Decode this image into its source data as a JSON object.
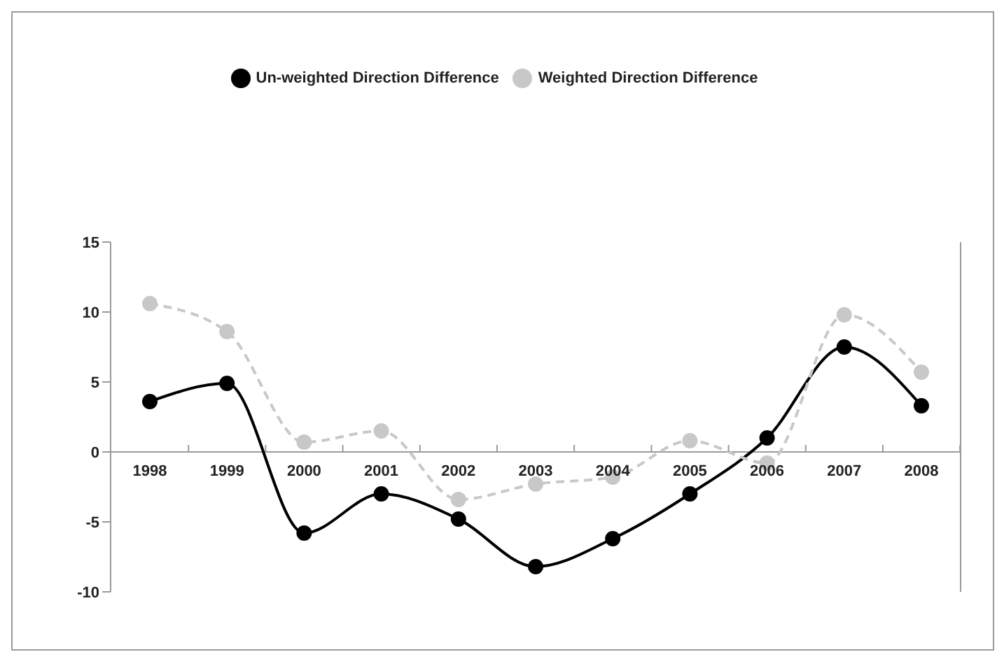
{
  "chart_data": {
    "type": "line",
    "categories": [
      "1998",
      "1999",
      "2000",
      "2001",
      "2002",
      "2003",
      "2004",
      "2005",
      "2006",
      "2007",
      "2008"
    ],
    "series": [
      {
        "name": "Un-weighted Direction Difference",
        "color": "#000000",
        "line_style": "solid",
        "values": [
          3.6,
          4.9,
          -5.8,
          -3.0,
          -4.8,
          -8.2,
          -6.2,
          -3.0,
          1.0,
          7.5,
          3.3
        ]
      },
      {
        "name": "Weighted Direction Difference",
        "color": "#c8c8c8",
        "line_style": "dashed",
        "values": [
          10.6,
          8.6,
          0.7,
          1.5,
          -3.4,
          -2.3,
          -1.8,
          0.8,
          -0.8,
          9.8,
          5.7
        ]
      }
    ],
    "ylim": [
      -10,
      15
    ],
    "yticks": [
      -10,
      -5,
      0,
      5,
      10,
      15
    ],
    "grid": false,
    "legend": "top",
    "marker": "circle"
  }
}
